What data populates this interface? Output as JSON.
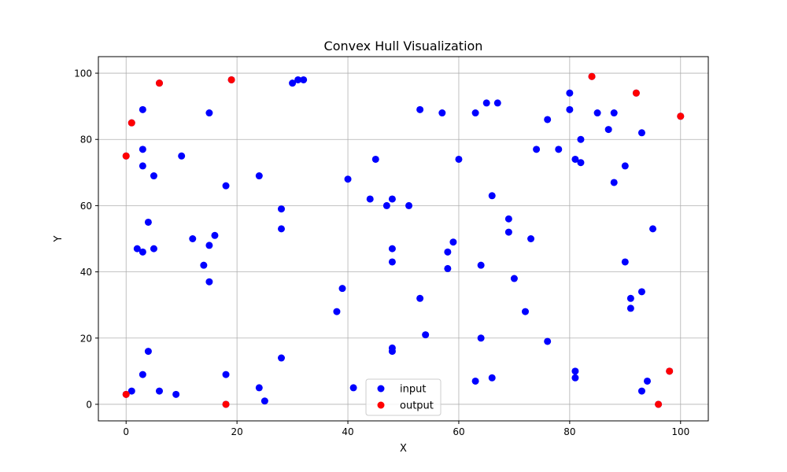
{
  "chart_data": {
    "type": "scatter",
    "title": "Convex Hull Visualization",
    "xlabel": "X",
    "ylabel": "Y",
    "xlim": [
      -5,
      105
    ],
    "ylim": [
      -5,
      105
    ],
    "xticks": [
      0,
      20,
      40,
      60,
      80,
      100
    ],
    "yticks": [
      0,
      20,
      40,
      60,
      80,
      100
    ],
    "grid": true,
    "legend_position": "bottom-center",
    "series": [
      {
        "name": "input",
        "color": "#0000ff",
        "points": [
          [
            0,
            3
          ],
          [
            1,
            4
          ],
          [
            0,
            75
          ],
          [
            1,
            85
          ],
          [
            2,
            47
          ],
          [
            3,
            46
          ],
          [
            3,
            72
          ],
          [
            3,
            77
          ],
          [
            3,
            89
          ],
          [
            3,
            9
          ],
          [
            4,
            16
          ],
          [
            4,
            55
          ],
          [
            5,
            69
          ],
          [
            5,
            47
          ],
          [
            6,
            4
          ],
          [
            6,
            97
          ],
          [
            9,
            3
          ],
          [
            10,
            75
          ],
          [
            12,
            50
          ],
          [
            14,
            42
          ],
          [
            15,
            88
          ],
          [
            15,
            48
          ],
          [
            15,
            37
          ],
          [
            16,
            51
          ],
          [
            18,
            66
          ],
          [
            18,
            9
          ],
          [
            18,
            0
          ],
          [
            19,
            98
          ],
          [
            24,
            69
          ],
          [
            24,
            5
          ],
          [
            25,
            1
          ],
          [
            28,
            59
          ],
          [
            28,
            53
          ],
          [
            28,
            14
          ],
          [
            30,
            97
          ],
          [
            31,
            98
          ],
          [
            32,
            98
          ],
          [
            38,
            28
          ],
          [
            39,
            35
          ],
          [
            40,
            68
          ],
          [
            41,
            5
          ],
          [
            44,
            62
          ],
          [
            45,
            74
          ],
          [
            47,
            60
          ],
          [
            48,
            62
          ],
          [
            48,
            47
          ],
          [
            48,
            43
          ],
          [
            48,
            17
          ],
          [
            48,
            16
          ],
          [
            51,
            60
          ],
          [
            53,
            89
          ],
          [
            53,
            32
          ],
          [
            54,
            21
          ],
          [
            57,
            88
          ],
          [
            58,
            46
          ],
          [
            58,
            41
          ],
          [
            59,
            49
          ],
          [
            60,
            74
          ],
          [
            63,
            88
          ],
          [
            63,
            7
          ],
          [
            64,
            42
          ],
          [
            64,
            20
          ],
          [
            65,
            91
          ],
          [
            66,
            63
          ],
          [
            66,
            8
          ],
          [
            67,
            91
          ],
          [
            69,
            56
          ],
          [
            69,
            52
          ],
          [
            70,
            38
          ],
          [
            72,
            28
          ],
          [
            73,
            50
          ],
          [
            74,
            77
          ],
          [
            76,
            86
          ],
          [
            76,
            19
          ],
          [
            78,
            77
          ],
          [
            80,
            94
          ],
          [
            80,
            89
          ],
          [
            81,
            74
          ],
          [
            81,
            10
          ],
          [
            81,
            8
          ],
          [
            82,
            80
          ],
          [
            82,
            73
          ],
          [
            84,
            99
          ],
          [
            85,
            88
          ],
          [
            87,
            83
          ],
          [
            88,
            88
          ],
          [
            88,
            67
          ],
          [
            90,
            72
          ],
          [
            90,
            43
          ],
          [
            91,
            32
          ],
          [
            91,
            29
          ],
          [
            92,
            94
          ],
          [
            93,
            82
          ],
          [
            93,
            34
          ],
          [
            93,
            4
          ],
          [
            94,
            7
          ],
          [
            95,
            53
          ],
          [
            96,
            0
          ],
          [
            98,
            10
          ],
          [
            100,
            87
          ]
        ]
      },
      {
        "name": "output",
        "color": "#ff0000",
        "points": [
          [
            0,
            3
          ],
          [
            18,
            0
          ],
          [
            96,
            0
          ],
          [
            98,
            10
          ],
          [
            100,
            87
          ],
          [
            92,
            94
          ],
          [
            84,
            99
          ],
          [
            19,
            98
          ],
          [
            6,
            97
          ],
          [
            1,
            85
          ],
          [
            0,
            75
          ]
        ]
      }
    ]
  }
}
